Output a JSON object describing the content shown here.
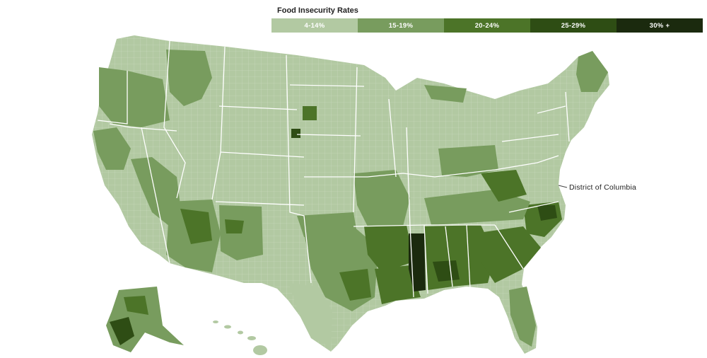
{
  "legend": {
    "title": "Food Insecurity Rates",
    "items": [
      {
        "label": "4-14%",
        "color": "#b2c9a2",
        "text_color": "#ffffff"
      },
      {
        "label": "15-19%",
        "color": "#789c5e",
        "text_color": "#ffffff"
      },
      {
        "label": "20-24%",
        "color": "#4c7428",
        "text_color": "#ffffff"
      },
      {
        "label": "25-29%",
        "color": "#2e4d14",
        "text_color": "#ffffff"
      },
      {
        "label": "30% +",
        "color": "#1b2a0e",
        "text_color": "#ffffff"
      }
    ]
  },
  "map": {
    "annotation": "District of Columbia",
    "border_color": "#ffffff"
  }
}
